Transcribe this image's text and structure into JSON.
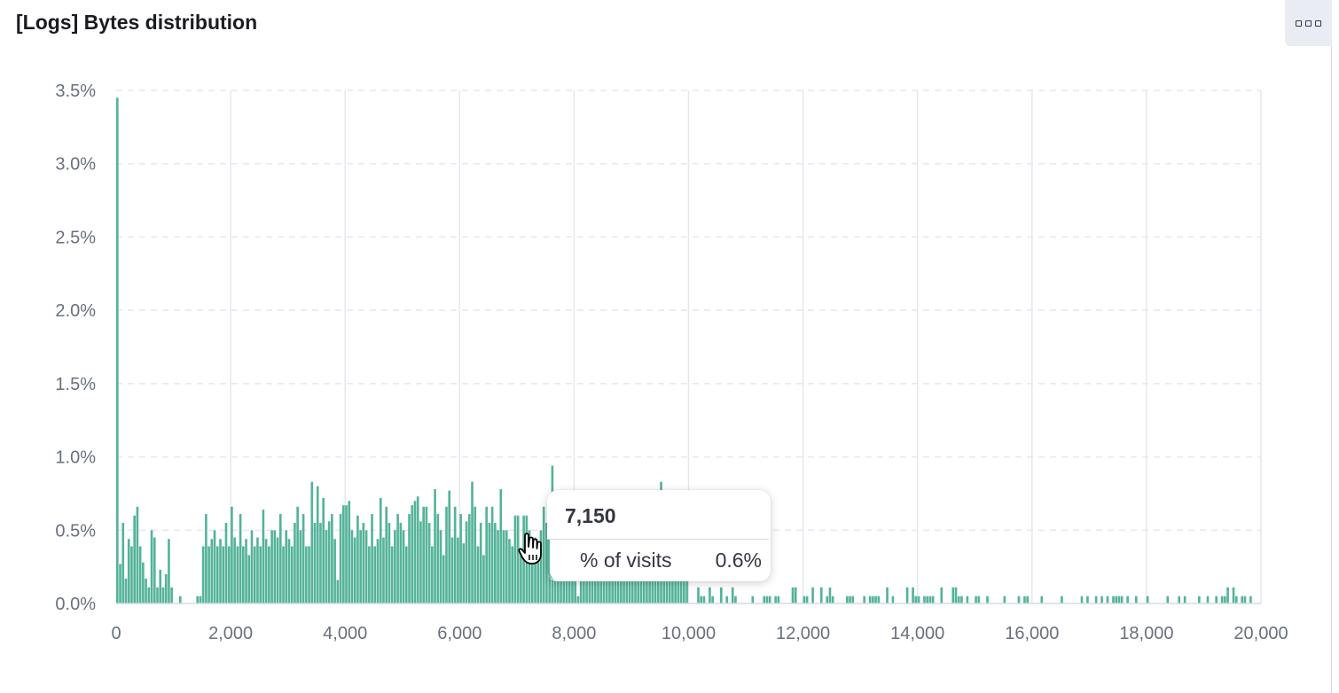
{
  "panel": {
    "title": "[Logs] Bytes distribution",
    "menu_icon": "three-dots-menu-icon"
  },
  "tooltip": {
    "header": "7,150",
    "label": "% of visits",
    "value": "0.6%",
    "series_color": "#54b399"
  },
  "colors": {
    "bar": "#54b399",
    "grid": "#e4e8ef",
    "axis_text": "#69707d"
  },
  "chart_data": {
    "type": "bar",
    "xlim": [
      0,
      20000
    ],
    "ylim": [
      0,
      3.5
    ],
    "x_ticks": [
      "0",
      "2,000",
      "4,000",
      "6,000",
      "8,000",
      "10,000",
      "12,000",
      "14,000",
      "16,000",
      "18,000",
      "20,000"
    ],
    "y_ticks": [
      "0.0%",
      "0.5%",
      "1.0%",
      "1.5%",
      "2.0%",
      "2.5%",
      "3.0%",
      "3.5%"
    ],
    "grid": true,
    "bin_width": 50,
    "highlighted_bin": 7150,
    "bars": [
      [
        0,
        3.45
      ],
      [
        50,
        0.27
      ],
      [
        100,
        0.55
      ],
      [
        150,
        0.17
      ],
      [
        200,
        0.44
      ],
      [
        250,
        0.39
      ],
      [
        300,
        0.6
      ],
      [
        350,
        0.66
      ],
      [
        400,
        0.39
      ],
      [
        450,
        0.28
      ],
      [
        500,
        0.17
      ],
      [
        550,
        0.11
      ],
      [
        600,
        0.5
      ],
      [
        650,
        0.45
      ],
      [
        700,
        0.11
      ],
      [
        750,
        0.23
      ],
      [
        800,
        0.11
      ],
      [
        850,
        0.2
      ],
      [
        900,
        0.44
      ],
      [
        950,
        0.11
      ],
      [
        1100,
        0.05
      ],
      [
        1400,
        0.05
      ],
      [
        1450,
        0.05
      ],
      [
        1500,
        0.39
      ],
      [
        1550,
        0.61
      ],
      [
        1600,
        0.39
      ],
      [
        1650,
        0.44
      ],
      [
        1700,
        0.5
      ],
      [
        1750,
        0.39
      ],
      [
        1800,
        0.44
      ],
      [
        1850,
        0.39
      ],
      [
        1900,
        0.55
      ],
      [
        1950,
        0.39
      ],
      [
        2000,
        0.66
      ],
      [
        2050,
        0.45
      ],
      [
        2100,
        0.39
      ],
      [
        2150,
        0.61
      ],
      [
        2200,
        0.39
      ],
      [
        2250,
        0.44
      ],
      [
        2300,
        0.33
      ],
      [
        2350,
        0.5
      ],
      [
        2400,
        0.39
      ],
      [
        2450,
        0.45
      ],
      [
        2500,
        0.39
      ],
      [
        2550,
        0.64
      ],
      [
        2600,
        0.44
      ],
      [
        2650,
        0.39
      ],
      [
        2700,
        0.5
      ],
      [
        2750,
        0.5
      ],
      [
        2800,
        0.45
      ],
      [
        2850,
        0.61
      ],
      [
        2900,
        0.39
      ],
      [
        2950,
        0.5
      ],
      [
        3000,
        0.44
      ],
      [
        3050,
        0.39
      ],
      [
        3100,
        0.55
      ],
      [
        3150,
        0.66
      ],
      [
        3200,
        0.5
      ],
      [
        3250,
        0.61
      ],
      [
        3300,
        0.39
      ],
      [
        3350,
        0.39
      ],
      [
        3400,
        0.83
      ],
      [
        3450,
        0.55
      ],
      [
        3500,
        0.8
      ],
      [
        3550,
        0.55
      ],
      [
        3600,
        0.72
      ],
      [
        3650,
        0.5
      ],
      [
        3700,
        0.56
      ],
      [
        3750,
        0.61
      ],
      [
        3800,
        0.44
      ],
      [
        3850,
        0.16
      ],
      [
        3900,
        0.61
      ],
      [
        3950,
        0.67
      ],
      [
        4000,
        0.67
      ],
      [
        4050,
        0.7
      ],
      [
        4100,
        0.5
      ],
      [
        4150,
        0.45
      ],
      [
        4200,
        0.6
      ],
      [
        4250,
        0.5
      ],
      [
        4300,
        0.55
      ],
      [
        4350,
        0.5
      ],
      [
        4400,
        0.39
      ],
      [
        4450,
        0.61
      ],
      [
        4500,
        0.39
      ],
      [
        4550,
        0.44
      ],
      [
        4600,
        0.72
      ],
      [
        4650,
        0.45
      ],
      [
        4700,
        0.66
      ],
      [
        4750,
        0.55
      ],
      [
        4800,
        0.39
      ],
      [
        4850,
        0.5
      ],
      [
        4900,
        0.61
      ],
      [
        4950,
        0.55
      ],
      [
        5000,
        0.5
      ],
      [
        5050,
        0.39
      ],
      [
        5100,
        0.61
      ],
      [
        5150,
        0.67
      ],
      [
        5200,
        0.7
      ],
      [
        5250,
        0.73
      ],
      [
        5300,
        0.56
      ],
      [
        5350,
        0.66
      ],
      [
        5400,
        0.66
      ],
      [
        5450,
        0.55
      ],
      [
        5500,
        0.39
      ],
      [
        5550,
        0.78
      ],
      [
        5600,
        0.61
      ],
      [
        5650,
        0.5
      ],
      [
        5700,
        0.33
      ],
      [
        5750,
        0.66
      ],
      [
        5800,
        0.77
      ],
      [
        5850,
        0.45
      ],
      [
        5900,
        0.66
      ],
      [
        5950,
        0.45
      ],
      [
        6000,
        0.61
      ],
      [
        6050,
        0.41
      ],
      [
        6100,
        0.56
      ],
      [
        6150,
        0.61
      ],
      [
        6200,
        0.83
      ],
      [
        6250,
        0.66
      ],
      [
        6300,
        0.39
      ],
      [
        6350,
        0.55
      ],
      [
        6400,
        0.33
      ],
      [
        6450,
        0.66
      ],
      [
        6500,
        0.55
      ],
      [
        6550,
        0.66
      ],
      [
        6600,
        0.55
      ],
      [
        6650,
        0.5
      ],
      [
        6700,
        0.78
      ],
      [
        6750,
        0.5
      ],
      [
        6800,
        0.5
      ],
      [
        6850,
        0.44
      ],
      [
        6900,
        0.39
      ],
      [
        6950,
        0.6
      ],
      [
        7000,
        0.6
      ],
      [
        7050,
        0.35
      ],
      [
        7100,
        0.6
      ],
      [
        7150,
        0.6
      ],
      [
        7200,
        0.5
      ],
      [
        7250,
        0.45
      ],
      [
        7300,
        0.45
      ],
      [
        7350,
        0.39
      ],
      [
        7400,
        0.5
      ],
      [
        7450,
        0.66
      ],
      [
        7500,
        0.55
      ],
      [
        7550,
        0.5
      ],
      [
        7600,
        0.94
      ],
      [
        7650,
        0.6
      ],
      [
        7700,
        0.66
      ],
      [
        7750,
        0.5
      ],
      [
        7800,
        0.66
      ],
      [
        7850,
        0.55
      ],
      [
        7900,
        0.45
      ],
      [
        7950,
        0.55
      ],
      [
        8000,
        0.44
      ],
      [
        8050,
        0.05
      ],
      [
        8100,
        0.45
      ],
      [
        8150,
        0.39
      ],
      [
        8200,
        0.44
      ],
      [
        8250,
        0.5
      ],
      [
        8300,
        0.55
      ],
      [
        8350,
        0.45
      ],
      [
        8400,
        0.39
      ],
      [
        8450,
        0.44
      ],
      [
        8500,
        0.33
      ],
      [
        8550,
        0.45
      ],
      [
        8600,
        0.5
      ],
      [
        8650,
        0.44
      ],
      [
        8700,
        0.39
      ],
      [
        8750,
        0.45
      ],
      [
        8800,
        0.39
      ],
      [
        8850,
        0.33
      ],
      [
        8900,
        0.45
      ],
      [
        8950,
        0.39
      ],
      [
        9000,
        0.44
      ],
      [
        9050,
        0.45
      ],
      [
        9100,
        0.39
      ],
      [
        9150,
        0.33
      ],
      [
        9200,
        0.45
      ],
      [
        9250,
        0.39
      ],
      [
        9300,
        0.33
      ],
      [
        9350,
        0.44
      ],
      [
        9400,
        0.39
      ],
      [
        9450,
        0.45
      ],
      [
        9500,
        0.83
      ],
      [
        9550,
        0.39
      ],
      [
        9600,
        0.33
      ],
      [
        9650,
        0.44
      ],
      [
        9700,
        0.28
      ],
      [
        9750,
        0.33
      ],
      [
        9800,
        0.39
      ],
      [
        9850,
        0.28
      ],
      [
        9900,
        0.39
      ],
      [
        9950,
        0.39
      ],
      [
        10150,
        0.11
      ],
      [
        10200,
        0.05
      ],
      [
        10250,
        0.05
      ],
      [
        10350,
        0.11
      ],
      [
        10400,
        0.05
      ],
      [
        10550,
        0.11
      ],
      [
        10650,
        0.05
      ],
      [
        10750,
        0.11
      ],
      [
        10800,
        0.05
      ],
      [
        11100,
        0.05
      ],
      [
        11300,
        0.05
      ],
      [
        11350,
        0.05
      ],
      [
        11400,
        0.05
      ],
      [
        11500,
        0.05
      ],
      [
        11550,
        0.05
      ],
      [
        11800,
        0.11
      ],
      [
        11850,
        0.11
      ],
      [
        12000,
        0.05
      ],
      [
        12050,
        0.05
      ],
      [
        12150,
        0.11
      ],
      [
        12300,
        0.11
      ],
      [
        12400,
        0.05
      ],
      [
        12450,
        0.11
      ],
      [
        12500,
        0.05
      ],
      [
        12750,
        0.05
      ],
      [
        12800,
        0.05
      ],
      [
        12850,
        0.05
      ],
      [
        13050,
        0.05
      ],
      [
        13150,
        0.05
      ],
      [
        13200,
        0.05
      ],
      [
        13250,
        0.05
      ],
      [
        13300,
        0.05
      ],
      [
        13450,
        0.11
      ],
      [
        13550,
        0.05
      ],
      [
        13800,
        0.11
      ],
      [
        13900,
        0.11
      ],
      [
        13950,
        0.05
      ],
      [
        14000,
        0.05
      ],
      [
        14100,
        0.05
      ],
      [
        14150,
        0.05
      ],
      [
        14200,
        0.05
      ],
      [
        14250,
        0.05
      ],
      [
        14400,
        0.11
      ],
      [
        14600,
        0.11
      ],
      [
        14650,
        0.11
      ],
      [
        14700,
        0.05
      ],
      [
        14750,
        0.05
      ],
      [
        14850,
        0.05
      ],
      [
        15000,
        0.05
      ],
      [
        15050,
        0.05
      ],
      [
        15200,
        0.05
      ],
      [
        15500,
        0.05
      ],
      [
        15750,
        0.05
      ],
      [
        15850,
        0.05
      ],
      [
        15900,
        0.05
      ],
      [
        16150,
        0.05
      ],
      [
        16500,
        0.05
      ],
      [
        16850,
        0.05
      ],
      [
        16950,
        0.05
      ],
      [
        17100,
        0.05
      ],
      [
        17200,
        0.05
      ],
      [
        17300,
        0.05
      ],
      [
        17400,
        0.05
      ],
      [
        17450,
        0.05
      ],
      [
        17500,
        0.05
      ],
      [
        17550,
        0.05
      ],
      [
        17650,
        0.05
      ],
      [
        17800,
        0.05
      ],
      [
        18000,
        0.05
      ],
      [
        18350,
        0.05
      ],
      [
        18550,
        0.05
      ],
      [
        18650,
        0.05
      ],
      [
        18900,
        0.05
      ],
      [
        19050,
        0.05
      ],
      [
        19200,
        0.05
      ],
      [
        19300,
        0.05
      ],
      [
        19350,
        0.05
      ],
      [
        19400,
        0.11
      ],
      [
        19500,
        0.11
      ],
      [
        19550,
        0.05
      ],
      [
        19650,
        0.05
      ],
      [
        19700,
        0.05
      ],
      [
        19800,
        0.05
      ]
    ]
  }
}
